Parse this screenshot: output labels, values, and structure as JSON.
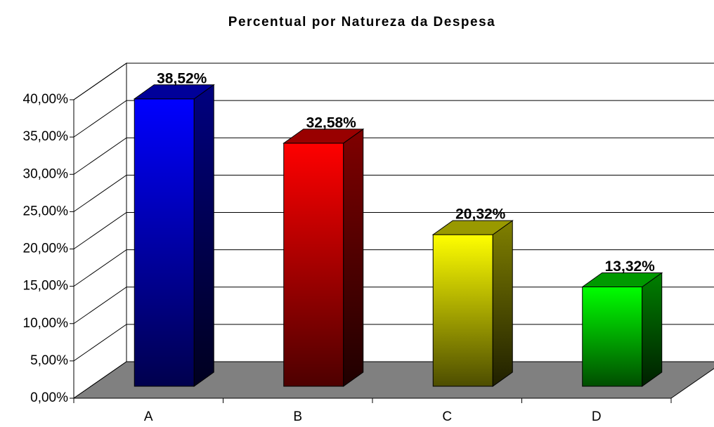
{
  "chart_data": {
    "type": "bar3d",
    "title": "Percentual por Natureza da Despesa",
    "categories": [
      "A",
      "B",
      "C",
      "D"
    ],
    "values": [
      38.52,
      32.58,
      20.32,
      13.32
    ],
    "value_labels": [
      "38,52%",
      "32,58%",
      "20,32%",
      "13,32%"
    ],
    "colors": [
      "#0000ff",
      "#ff0000",
      "#ffff00",
      "#00ff00"
    ],
    "ylim": [
      0,
      40
    ],
    "yticks": [
      {
        "value": 0,
        "label": "0,00%"
      },
      {
        "value": 5,
        "label": "5,00%"
      },
      {
        "value": 10,
        "label": "10,00%"
      },
      {
        "value": 15,
        "label": "15,00%"
      },
      {
        "value": 20,
        "label": "20,00%"
      },
      {
        "value": 25,
        "label": "25,00%"
      },
      {
        "value": 30,
        "label": "30,00%"
      },
      {
        "value": 35,
        "label": "35,00%"
      },
      {
        "value": 40,
        "label": "40,00%"
      }
    ],
    "grid": true
  }
}
